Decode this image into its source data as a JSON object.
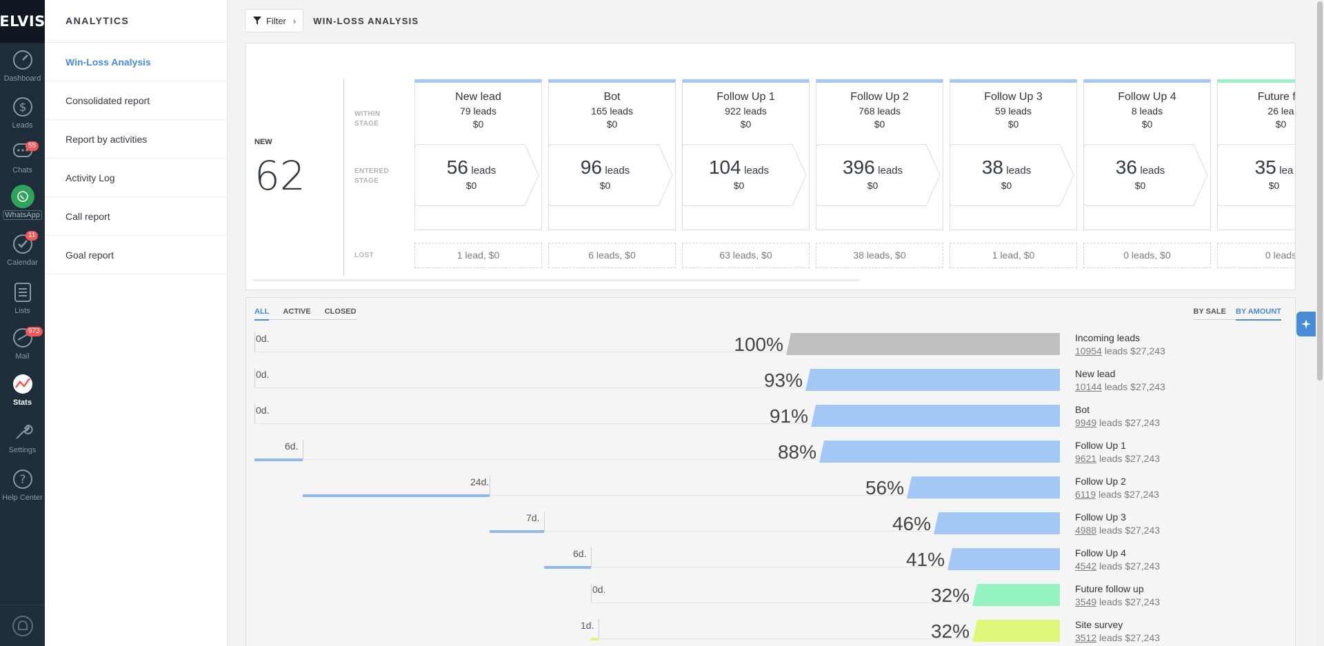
{
  "brand": "ELVIS",
  "rail": [
    {
      "label": "Dashboard",
      "icon": "gauge-icon"
    },
    {
      "label": "Leads",
      "icon": "dollar-icon"
    },
    {
      "label": "Chats",
      "icon": "chat-icon",
      "badge": "55"
    },
    {
      "label": "WhatsApp",
      "icon": "whatsapp-icon"
    },
    {
      "label": "Calendar",
      "icon": "check-circle-icon",
      "badge": "11"
    },
    {
      "label": "Lists",
      "icon": "list-icon"
    },
    {
      "label": "Mail",
      "icon": "mail-icon",
      "badge": "973"
    },
    {
      "label": "Stats",
      "icon": "stats-icon"
    },
    {
      "label": "Settings",
      "icon": "wrench-icon"
    },
    {
      "label": "Help Center",
      "icon": "help-icon"
    }
  ],
  "sidebar": {
    "title": "ANALYTICS",
    "items": [
      {
        "label": "Win-Loss Analysis"
      },
      {
        "label": "Consolidated report"
      },
      {
        "label": "Report by activities"
      },
      {
        "label": "Activity Log"
      },
      {
        "label": "Call report"
      },
      {
        "label": "Goal report"
      }
    ]
  },
  "header": {
    "filter_label": "Filter",
    "title": "WIN-LOSS ANALYSIS"
  },
  "stages_panel": {
    "new_label": "NEW",
    "new_value": "62",
    "row_within": [
      "WITHIN",
      "STAGE"
    ],
    "row_entered": [
      "ENTERED",
      "STAGE"
    ],
    "row_lost": "LOST",
    "columns": [
      {
        "name": "New lead",
        "within_leads": "79 leads",
        "within_amount": "$0",
        "entered_count": "56",
        "entered_label": "leads",
        "entered_amount": "$0",
        "lost": "1 lead, $0"
      },
      {
        "name": "Bot",
        "within_leads": "165 leads",
        "within_amount": "$0",
        "entered_count": "96",
        "entered_label": "leads",
        "entered_amount": "$0",
        "lost": "6 leads, $0"
      },
      {
        "name": "Follow Up 1",
        "within_leads": "922 leads",
        "within_amount": "$0",
        "entered_count": "104",
        "entered_label": "leads",
        "entered_amount": "$0",
        "lost": "63 leads, $0"
      },
      {
        "name": "Follow Up 2",
        "within_leads": "768 leads",
        "within_amount": "$0",
        "entered_count": "396",
        "entered_label": "leads",
        "entered_amount": "$0",
        "lost": "38 leads, $0"
      },
      {
        "name": "Follow Up 3",
        "within_leads": "59 leads",
        "within_amount": "$0",
        "entered_count": "38",
        "entered_label": "leads",
        "entered_amount": "$0",
        "lost": "1 lead, $0"
      },
      {
        "name": "Follow Up 4",
        "within_leads": "8 leads",
        "within_amount": "$0",
        "entered_count": "36",
        "entered_label": "leads",
        "entered_amount": "$0",
        "lost": "0 leads, $0"
      },
      {
        "name": "Future fol",
        "within_leads": "26 lea",
        "within_amount": "$0",
        "entered_count": "35",
        "entered_label": "lea",
        "entered_amount": "$0",
        "lost": "0 leads"
      }
    ]
  },
  "funnel": {
    "tabs": [
      "ALL",
      "ACTIVE",
      "CLOSED"
    ],
    "modes": [
      "BY SALE",
      "BY AMOUNT"
    ],
    "colors": {
      "grey": "#c0c0c0",
      "blue": "#a4c8f5",
      "green": "#96f2c0",
      "yellow": "#dcf77a"
    },
    "rows": [
      {
        "days": "0d.",
        "pct": "100%",
        "pct_value": 100,
        "name": "Incoming leads",
        "count": "10954",
        "rest": " leads $27,243",
        "color": "grey"
      },
      {
        "days": "0d.",
        "pct": "93%",
        "pct_value": 93,
        "name": "New lead",
        "count": "10144",
        "rest": " leads $27,243",
        "color": "blue"
      },
      {
        "days": "0d.",
        "pct": "91%",
        "pct_value": 91,
        "name": "Bot",
        "count": "9949",
        "rest": " leads $27,243",
        "color": "blue"
      },
      {
        "days": "6d.",
        "pct": "88%",
        "pct_value": 88,
        "name": "Follow Up 1",
        "count": "9621",
        "rest": " leads $27,243",
        "color": "blue"
      },
      {
        "days": "24d.",
        "pct": "56%",
        "pct_value": 56,
        "name": "Follow Up 2",
        "count": "6119",
        "rest": " leads $27,243",
        "color": "blue"
      },
      {
        "days": "7d.",
        "pct": "46%",
        "pct_value": 46,
        "name": "Follow Up 3",
        "count": "4988",
        "rest": " leads $27,243",
        "color": "blue"
      },
      {
        "days": "6d.",
        "pct": "41%",
        "pct_value": 41,
        "name": "Follow Up 4",
        "count": "4542",
        "rest": " leads $27,243",
        "color": "blue"
      },
      {
        "days": "0d.",
        "pct": "32%",
        "pct_value": 32,
        "name": "Future follow up",
        "count": "3549",
        "rest": " leads $27,243",
        "color": "green"
      },
      {
        "days": "1d.",
        "pct": "32%",
        "pct_value": 32,
        "name": "Site survey",
        "count": "3512",
        "rest": " leads $27,243",
        "color": "yellow"
      }
    ]
  }
}
